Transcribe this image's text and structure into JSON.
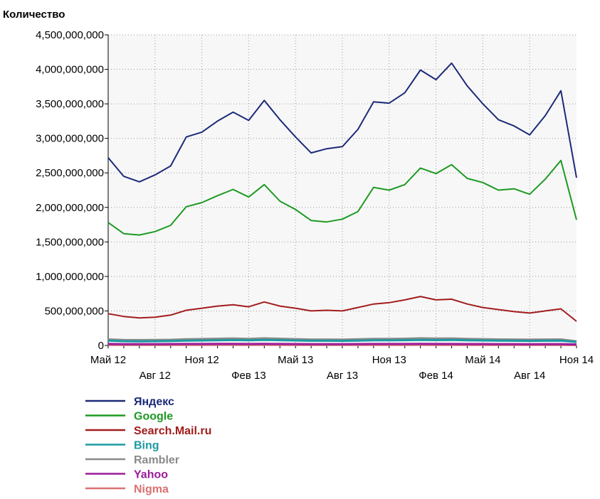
{
  "chart_data": {
    "type": "line",
    "title": "",
    "xlabel": "",
    "ylabel": "Количество",
    "ylim": [
      0,
      4500000000
    ],
    "yticks": [
      0,
      500000000,
      1000000000,
      1500000000,
      2000000000,
      2500000000,
      3000000000,
      3500000000,
      4000000000,
      4500000000
    ],
    "ytick_labels": [
      "0",
      "500,000,000",
      "1,000,000,000",
      "1,500,000,000",
      "2,000,000,000",
      "2,500,000,000",
      "3,000,000,000",
      "3,500,000,000",
      "4,000,000,000",
      "4,500,000,000"
    ],
    "x_labels": [
      {
        "label": "Май 12",
        "index": 0,
        "row": 0
      },
      {
        "label": "Авг 12",
        "index": 3,
        "row": 1
      },
      {
        "label": "Ноя 12",
        "index": 6,
        "row": 0
      },
      {
        "label": "Фев 13",
        "index": 9,
        "row": 1
      },
      {
        "label": "Май 13",
        "index": 12,
        "row": 0
      },
      {
        "label": "Авг 13",
        "index": 15,
        "row": 1
      },
      {
        "label": "Ноя 13",
        "index": 18,
        "row": 0
      },
      {
        "label": "Фев 14",
        "index": 21,
        "row": 1
      },
      {
        "label": "Май 14",
        "index": 24,
        "row": 0
      },
      {
        "label": "Авг 14",
        "index": 27,
        "row": 1
      },
      {
        "label": "Ноя 14",
        "index": 30,
        "row": 0
      }
    ],
    "grid": true,
    "legend_position": "bottom-left",
    "series": [
      {
        "name": "Яндекс",
        "color": "#1c2a78",
        "values": [
          2720000000,
          2450000000,
          2370000000,
          2470000000,
          2600000000,
          3020000000,
          3090000000,
          3250000000,
          3380000000,
          3260000000,
          3550000000,
          3270000000,
          3020000000,
          2790000000,
          2850000000,
          2880000000,
          3130000000,
          3530000000,
          3510000000,
          3660000000,
          3990000000,
          3850000000,
          4090000000,
          3760000000,
          3500000000,
          3270000000,
          3180000000,
          3050000000,
          3330000000,
          3690000000,
          2430000000
        ]
      },
      {
        "name": "Google",
        "color": "#1d9a22",
        "values": [
          1780000000,
          1620000000,
          1600000000,
          1650000000,
          1740000000,
          2010000000,
          2070000000,
          2170000000,
          2260000000,
          2150000000,
          2330000000,
          2090000000,
          1970000000,
          1810000000,
          1790000000,
          1830000000,
          1940000000,
          2290000000,
          2250000000,
          2330000000,
          2570000000,
          2490000000,
          2620000000,
          2420000000,
          2360000000,
          2250000000,
          2270000000,
          2190000000,
          2410000000,
          2680000000,
          1820000000
        ]
      },
      {
        "name": "Search.Mail.ru",
        "color": "#a21c1c",
        "values": [
          460000000,
          420000000,
          400000000,
          410000000,
          440000000,
          510000000,
          540000000,
          570000000,
          590000000,
          560000000,
          630000000,
          570000000,
          540000000,
          500000000,
          510000000,
          500000000,
          550000000,
          600000000,
          620000000,
          660000000,
          710000000,
          660000000,
          670000000,
          600000000,
          550000000,
          520000000,
          490000000,
          470000000,
          500000000,
          530000000,
          350000000
        ]
      },
      {
        "name": "Bing",
        "color": "#1c9aa2",
        "values": [
          70000000,
          62000000,
          60000000,
          62000000,
          64000000,
          70000000,
          72000000,
          75000000,
          78000000,
          74000000,
          80000000,
          76000000,
          72000000,
          68000000,
          68000000,
          67000000,
          70000000,
          74000000,
          74000000,
          76000000,
          80000000,
          77000000,
          79000000,
          74000000,
          72000000,
          69000000,
          68000000,
          66000000,
          68000000,
          70000000,
          52000000
        ]
      },
      {
        "name": "Rambler",
        "color": "#8a8a8a",
        "values": [
          88000000,
          80000000,
          78000000,
          80000000,
          82000000,
          90000000,
          94000000,
          98000000,
          102000000,
          96000000,
          104000000,
          98000000,
          92000000,
          86000000,
          86000000,
          84000000,
          90000000,
          96000000,
          96000000,
          98000000,
          104000000,
          100000000,
          102000000,
          96000000,
          92000000,
          88000000,
          86000000,
          84000000,
          86000000,
          88000000,
          60000000
        ]
      },
      {
        "name": "Yahoo",
        "color": "#9a1c9a",
        "values": [
          22000000,
          20000000,
          20000000,
          20000000,
          21000000,
          22000000,
          22000000,
          23000000,
          23000000,
          22000000,
          23000000,
          22000000,
          21000000,
          20000000,
          20000000,
          20000000,
          21000000,
          22000000,
          22000000,
          22000000,
          23000000,
          22000000,
          22000000,
          21000000,
          21000000,
          20000000,
          20000000,
          19000000,
          20000000,
          20000000,
          15000000
        ]
      },
      {
        "name": "Nigma",
        "color": "#d97070",
        "values": [
          8000000,
          8000000,
          7000000,
          7000000,
          8000000,
          8000000,
          8000000,
          9000000,
          9000000,
          8000000,
          9000000,
          8000000,
          8000000,
          7000000,
          7000000,
          7000000,
          8000000,
          8000000,
          8000000,
          8000000,
          9000000,
          8000000,
          8000000,
          8000000,
          7000000,
          7000000,
          7000000,
          7000000,
          7000000,
          7000000,
          5000000
        ]
      }
    ]
  }
}
